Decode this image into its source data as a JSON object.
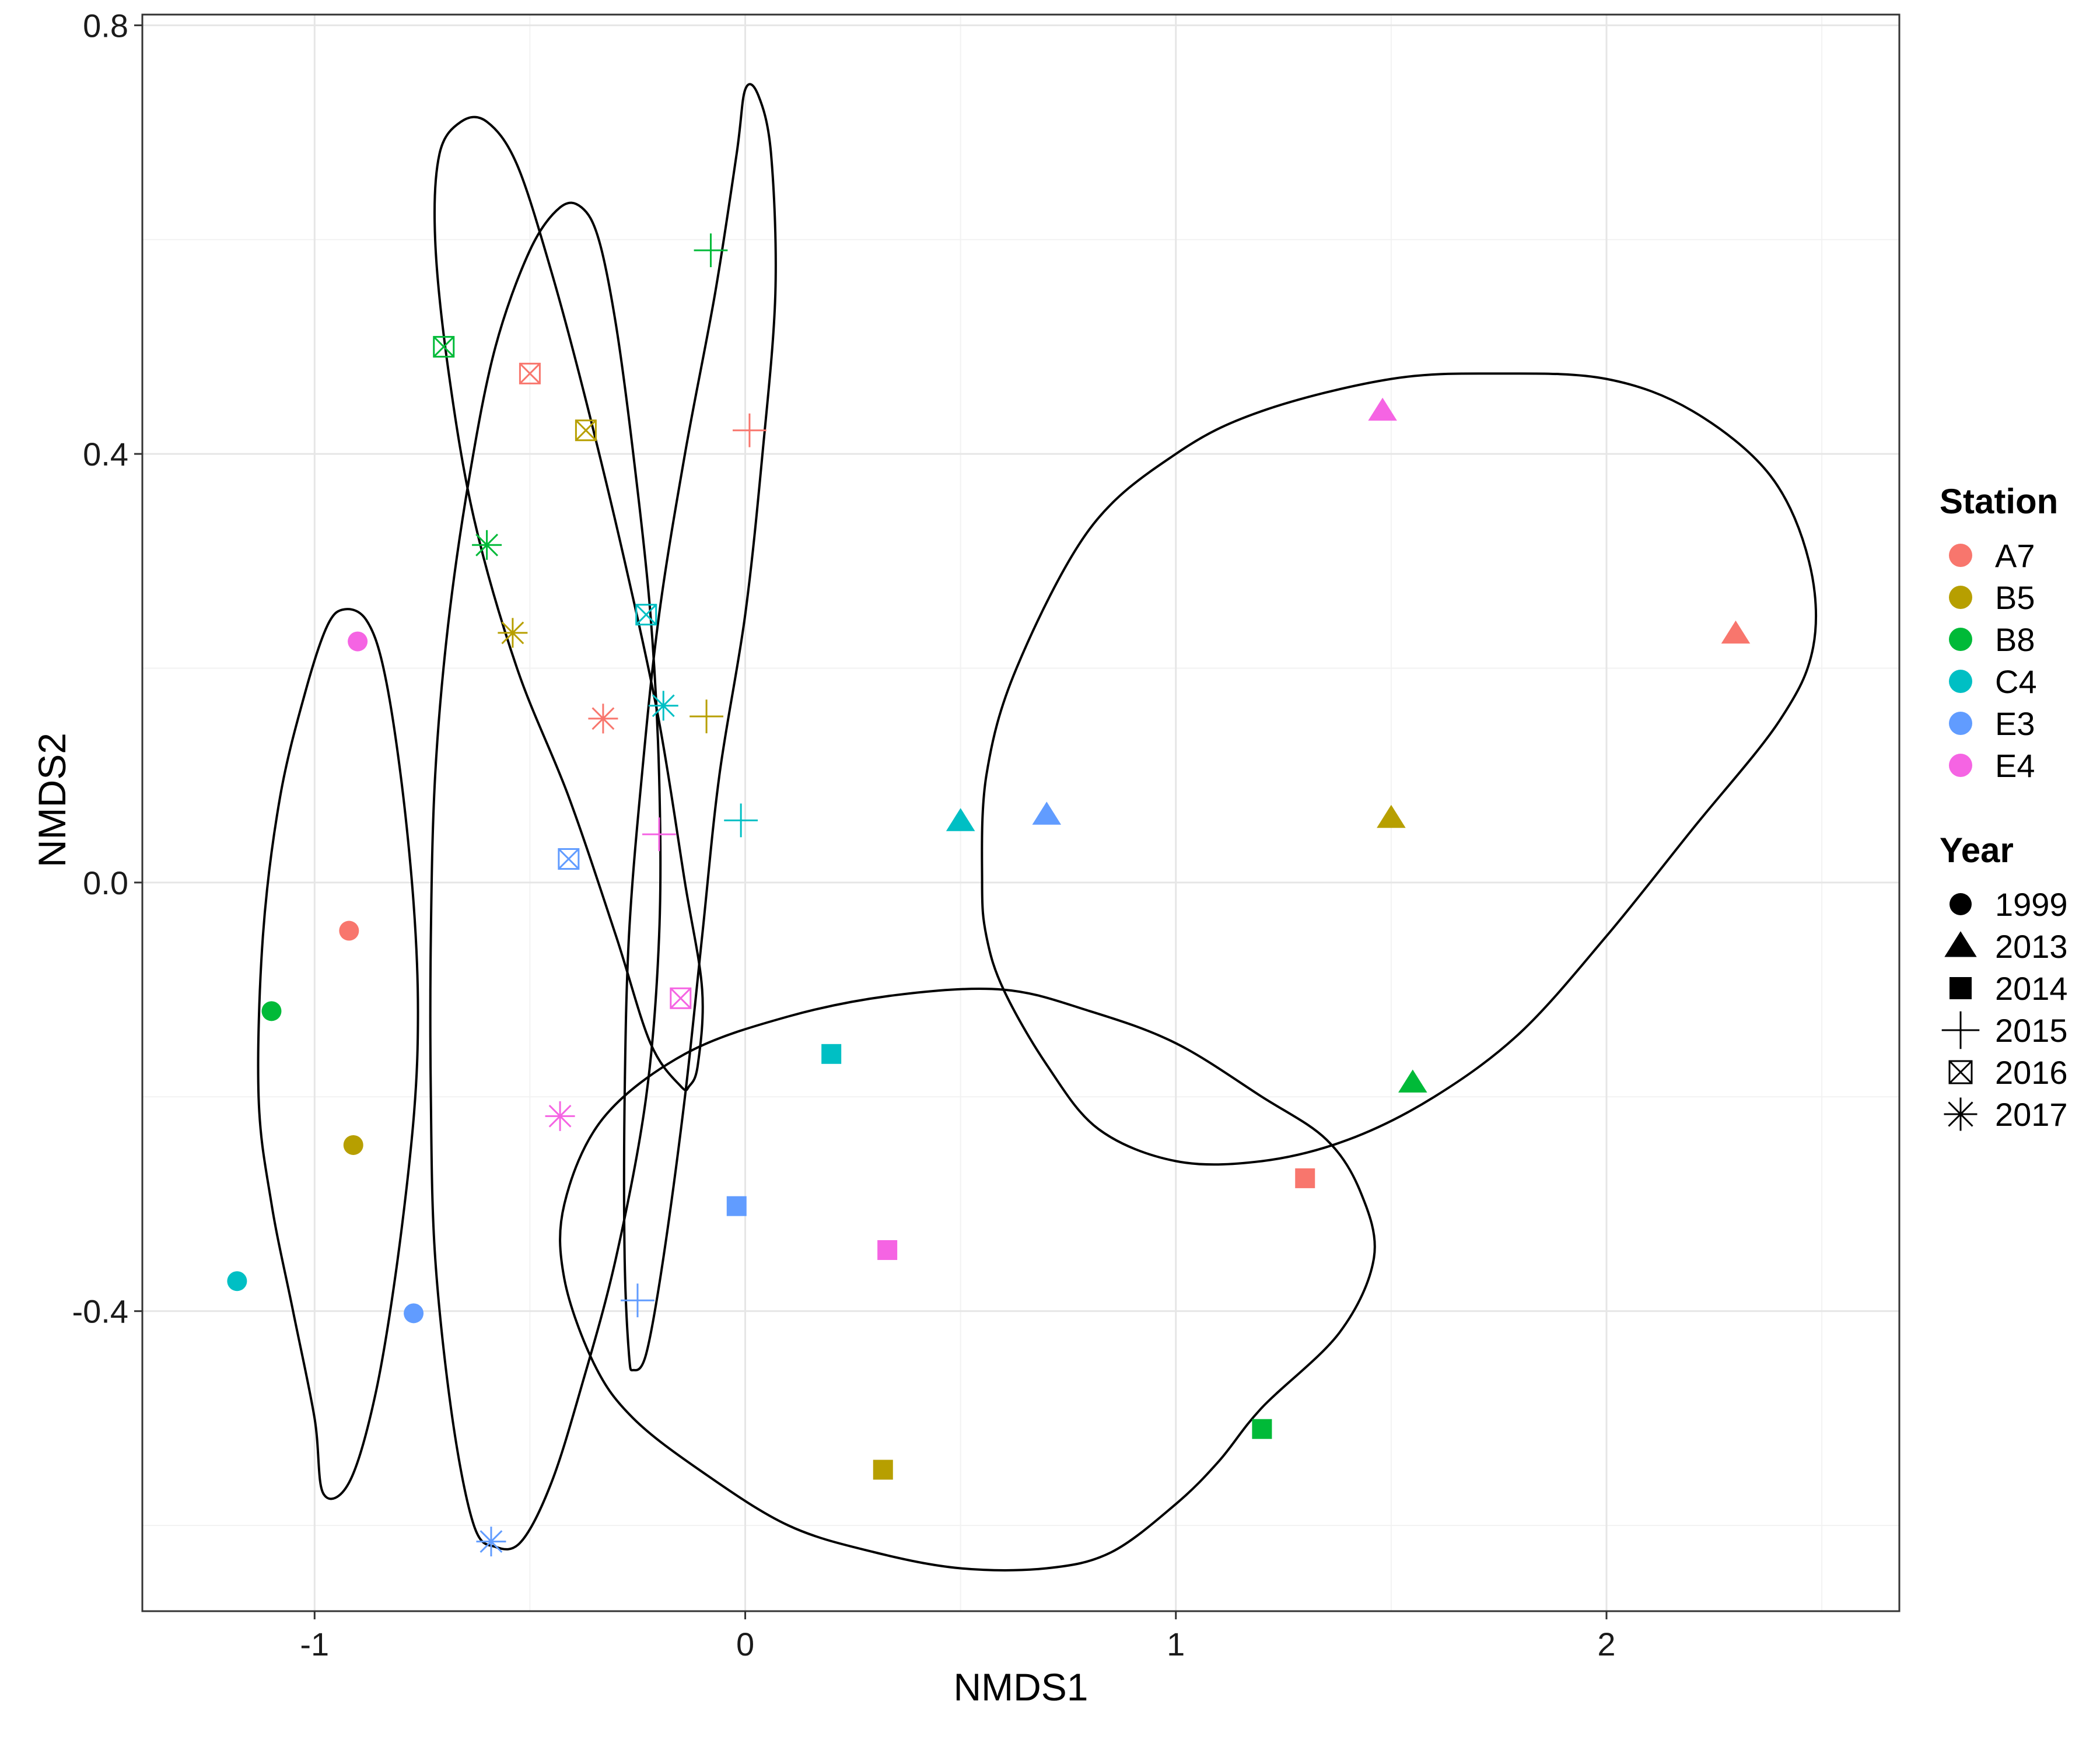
{
  "chart_data": {
    "type": "scatter",
    "xlabel": "NMDS1",
    "ylabel": "NMDS2",
    "xlim": [
      -1.4,
      2.68
    ],
    "ylim": [
      -0.68,
      0.81
    ],
    "x_ticks": [
      -1,
      0,
      1,
      2
    ],
    "x_tick_labels": [
      "-1",
      "0",
      "1",
      "2"
    ],
    "y_ticks": [
      -0.4,
      0.0,
      0.4,
      0.8
    ],
    "y_tick_labels": [
      "-0.4",
      "0.0",
      "0.4",
      "0.8"
    ],
    "grid": true,
    "legend_position": "right",
    "legends": [
      {
        "title": "Station",
        "items": [
          {
            "label": "A7",
            "color": "#F8766D"
          },
          {
            "label": "B5",
            "color": "#B79F00"
          },
          {
            "label": "B8",
            "color": "#00BA38"
          },
          {
            "label": "C4",
            "color": "#00BFC4"
          },
          {
            "label": "E3",
            "color": "#619CFF"
          },
          {
            "label": "E4",
            "color": "#F564E3"
          }
        ]
      },
      {
        "title": "Year",
        "items": [
          {
            "label": "1999",
            "shape": "circle"
          },
          {
            "label": "2013",
            "shape": "triangle"
          },
          {
            "label": "2014",
            "shape": "square"
          },
          {
            "label": "2015",
            "shape": "plus"
          },
          {
            "label": "2016",
            "shape": "boxcross"
          },
          {
            "label": "2017",
            "shape": "asterisk"
          }
        ]
      }
    ],
    "points": [
      {
        "station": "A7",
        "year": "1999",
        "x": -0.92,
        "y": -0.045
      },
      {
        "station": "B5",
        "year": "1999",
        "x": -0.91,
        "y": -0.245
      },
      {
        "station": "B8",
        "year": "1999",
        "x": -1.1,
        "y": -0.12
      },
      {
        "station": "C4",
        "year": "1999",
        "x": -1.18,
        "y": -0.372
      },
      {
        "station": "E3",
        "year": "1999",
        "x": -0.77,
        "y": -0.402
      },
      {
        "station": "E4",
        "year": "1999",
        "x": -0.9,
        "y": 0.225
      },
      {
        "station": "A7",
        "year": "2013",
        "x": 2.3,
        "y": 0.232
      },
      {
        "station": "B5",
        "year": "2013",
        "x": 1.5,
        "y": 0.06
      },
      {
        "station": "B8",
        "year": "2013",
        "x": 1.55,
        "y": -0.187
      },
      {
        "station": "C4",
        "year": "2013",
        "x": 0.5,
        "y": 0.057
      },
      {
        "station": "E3",
        "year": "2013",
        "x": 0.7,
        "y": 0.063
      },
      {
        "station": "E4",
        "year": "2013",
        "x": 1.48,
        "y": 0.44
      },
      {
        "station": "A7",
        "year": "2014",
        "x": 1.3,
        "y": -0.276
      },
      {
        "station": "B5",
        "year": "2014",
        "x": 0.32,
        "y": -0.548
      },
      {
        "station": "B8",
        "year": "2014",
        "x": 1.2,
        "y": -0.51
      },
      {
        "station": "C4",
        "year": "2014",
        "x": 0.2,
        "y": -0.16
      },
      {
        "station": "E3",
        "year": "2014",
        "x": -0.02,
        "y": -0.302
      },
      {
        "station": "E4",
        "year": "2014",
        "x": 0.33,
        "y": -0.343
      },
      {
        "station": "A7",
        "year": "2015",
        "x": 0.01,
        "y": 0.422
      },
      {
        "station": "B5",
        "year": "2015",
        "x": -0.09,
        "y": 0.155
      },
      {
        "station": "B8",
        "year": "2015",
        "x": -0.08,
        "y": 0.59
      },
      {
        "station": "C4",
        "year": "2015",
        "x": -0.01,
        "y": 0.058
      },
      {
        "station": "E3",
        "year": "2015",
        "x": -0.25,
        "y": -0.39
      },
      {
        "station": "E4",
        "year": "2015",
        "x": -0.2,
        "y": 0.045
      },
      {
        "station": "A7",
        "year": "2016",
        "x": -0.5,
        "y": 0.475
      },
      {
        "station": "B5",
        "year": "2016",
        "x": -0.37,
        "y": 0.422
      },
      {
        "station": "B8",
        "year": "2016",
        "x": -0.7,
        "y": 0.5
      },
      {
        "station": "C4",
        "year": "2016",
        "x": -0.23,
        "y": 0.25
      },
      {
        "station": "E3",
        "year": "2016",
        "x": -0.41,
        "y": 0.022
      },
      {
        "station": "E4",
        "year": "2016",
        "x": -0.15,
        "y": -0.108
      },
      {
        "station": "A7",
        "year": "2017",
        "x": -0.33,
        "y": 0.153
      },
      {
        "station": "B5",
        "year": "2017",
        "x": -0.54,
        "y": 0.233
      },
      {
        "station": "B8",
        "year": "2017",
        "x": -0.6,
        "y": 0.315
      },
      {
        "station": "C4",
        "year": "2017",
        "x": -0.19,
        "y": 0.165
      },
      {
        "station": "E3",
        "year": "2017",
        "x": -0.59,
        "y": -0.615
      },
      {
        "station": "E4",
        "year": "2017",
        "x": -0.43,
        "y": -0.218
      }
    ],
    "ellipses": [
      {
        "group": "1999",
        "outline": [
          [
            -0.98,
            -0.57
          ],
          [
            -1.0,
            -0.5
          ],
          [
            -1.05,
            -0.4
          ],
          [
            -1.1,
            -0.3
          ],
          [
            -1.13,
            -0.2
          ],
          [
            -1.12,
            -0.05
          ],
          [
            -1.08,
            0.08
          ],
          [
            -1.02,
            0.18
          ],
          [
            -0.97,
            0.24
          ],
          [
            -0.93,
            0.255
          ],
          [
            -0.88,
            0.245
          ],
          [
            -0.84,
            0.2
          ],
          [
            -0.8,
            0.1
          ],
          [
            -0.77,
            -0.02
          ],
          [
            -0.76,
            -0.12
          ],
          [
            -0.77,
            -0.22
          ],
          [
            -0.81,
            -0.36
          ],
          [
            -0.86,
            -0.48
          ],
          [
            -0.92,
            -0.56
          ]
        ]
      },
      {
        "group": "2013",
        "outline": [
          [
            0.6,
            -0.1
          ],
          [
            0.7,
            -0.17
          ],
          [
            0.82,
            -0.23
          ],
          [
            1.0,
            -0.26
          ],
          [
            1.2,
            -0.26
          ],
          [
            1.4,
            -0.24
          ],
          [
            1.6,
            -0.2
          ],
          [
            1.8,
            -0.14
          ],
          [
            2.0,
            -0.05
          ],
          [
            2.2,
            0.05
          ],
          [
            2.4,
            0.15
          ],
          [
            2.48,
            0.22
          ],
          [
            2.47,
            0.3
          ],
          [
            2.38,
            0.38
          ],
          [
            2.2,
            0.44
          ],
          [
            2.0,
            0.47
          ],
          [
            1.75,
            0.475
          ],
          [
            1.5,
            0.47
          ],
          [
            1.2,
            0.44
          ],
          [
            1.0,
            0.4
          ],
          [
            0.8,
            0.33
          ],
          [
            0.63,
            0.2
          ],
          [
            0.56,
            0.1
          ],
          [
            0.55,
            0.0
          ],
          [
            0.56,
            -0.05
          ]
        ]
      },
      {
        "group": "2014",
        "outline": [
          [
            -0.35,
            -0.45
          ],
          [
            -0.26,
            -0.5
          ],
          [
            -0.1,
            -0.55
          ],
          [
            0.1,
            -0.6
          ],
          [
            0.3,
            -0.625
          ],
          [
            0.5,
            -0.64
          ],
          [
            0.7,
            -0.64
          ],
          [
            0.85,
            -0.625
          ],
          [
            1.0,
            -0.58
          ],
          [
            1.1,
            -0.54
          ],
          [
            1.2,
            -0.49
          ],
          [
            1.38,
            -0.42
          ],
          [
            1.46,
            -0.35
          ],
          [
            1.43,
            -0.29
          ],
          [
            1.35,
            -0.24
          ],
          [
            1.2,
            -0.2
          ],
          [
            1.0,
            -0.15
          ],
          [
            0.8,
            -0.12
          ],
          [
            0.6,
            -0.1
          ],
          [
            0.35,
            -0.105
          ],
          [
            0.1,
            -0.125
          ],
          [
            -0.14,
            -0.16
          ],
          [
            -0.33,
            -0.22
          ],
          [
            -0.42,
            -0.3
          ],
          [
            -0.42,
            -0.37
          ]
        ]
      },
      {
        "group": "2015",
        "outline": [
          [
            -0.27,
            -0.44
          ],
          [
            -0.28,
            -0.35
          ],
          [
            -0.28,
            -0.2
          ],
          [
            -0.27,
            -0.05
          ],
          [
            -0.24,
            0.1
          ],
          [
            -0.2,
            0.25
          ],
          [
            -0.14,
            0.4
          ],
          [
            -0.07,
            0.55
          ],
          [
            -0.02,
            0.68
          ],
          [
            0.0,
            0.74
          ],
          [
            0.03,
            0.735
          ],
          [
            0.06,
            0.68
          ],
          [
            0.07,
            0.55
          ],
          [
            0.04,
            0.4
          ],
          [
            0.0,
            0.25
          ],
          [
            -0.06,
            0.1
          ],
          [
            -0.1,
            -0.05
          ],
          [
            -0.14,
            -0.2
          ],
          [
            -0.19,
            -0.35
          ],
          [
            -0.23,
            -0.44
          ],
          [
            -0.26,
            -0.455
          ]
        ]
      },
      {
        "group": "2016",
        "outline": [
          [
            -0.15,
            -0.19
          ],
          [
            -0.22,
            -0.15
          ],
          [
            -0.3,
            -0.05
          ],
          [
            -0.41,
            0.08
          ],
          [
            -0.53,
            0.2
          ],
          [
            -0.63,
            0.34
          ],
          [
            -0.69,
            0.48
          ],
          [
            -0.72,
            0.6
          ],
          [
            -0.71,
            0.68
          ],
          [
            -0.66,
            0.71
          ],
          [
            -0.6,
            0.71
          ],
          [
            -0.53,
            0.67
          ],
          [
            -0.45,
            0.57
          ],
          [
            -0.37,
            0.45
          ],
          [
            -0.28,
            0.3
          ],
          [
            -0.2,
            0.15
          ],
          [
            -0.14,
            0.0
          ],
          [
            -0.1,
            -0.1
          ],
          [
            -0.11,
            -0.17
          ],
          [
            -0.13,
            -0.19
          ]
        ]
      },
      {
        "group": "2017",
        "outline": [
          [
            -0.58,
            -0.62
          ],
          [
            -0.63,
            -0.6
          ],
          [
            -0.68,
            -0.5
          ],
          [
            -0.72,
            -0.35
          ],
          [
            -0.73,
            -0.2
          ],
          [
            -0.73,
            -0.05
          ],
          [
            -0.72,
            0.1
          ],
          [
            -0.69,
            0.24
          ],
          [
            -0.64,
            0.38
          ],
          [
            -0.58,
            0.5
          ],
          [
            -0.5,
            0.59
          ],
          [
            -0.43,
            0.63
          ],
          [
            -0.38,
            0.63
          ],
          [
            -0.34,
            0.6
          ],
          [
            -0.3,
            0.52
          ],
          [
            -0.26,
            0.4
          ],
          [
            -0.22,
            0.25
          ],
          [
            -0.2,
            0.1
          ],
          [
            -0.2,
            -0.05
          ],
          [
            -0.23,
            -0.2
          ],
          [
            -0.3,
            -0.35
          ],
          [
            -0.38,
            -0.47
          ],
          [
            -0.45,
            -0.56
          ],
          [
            -0.52,
            -0.615
          ]
        ]
      }
    ]
  }
}
